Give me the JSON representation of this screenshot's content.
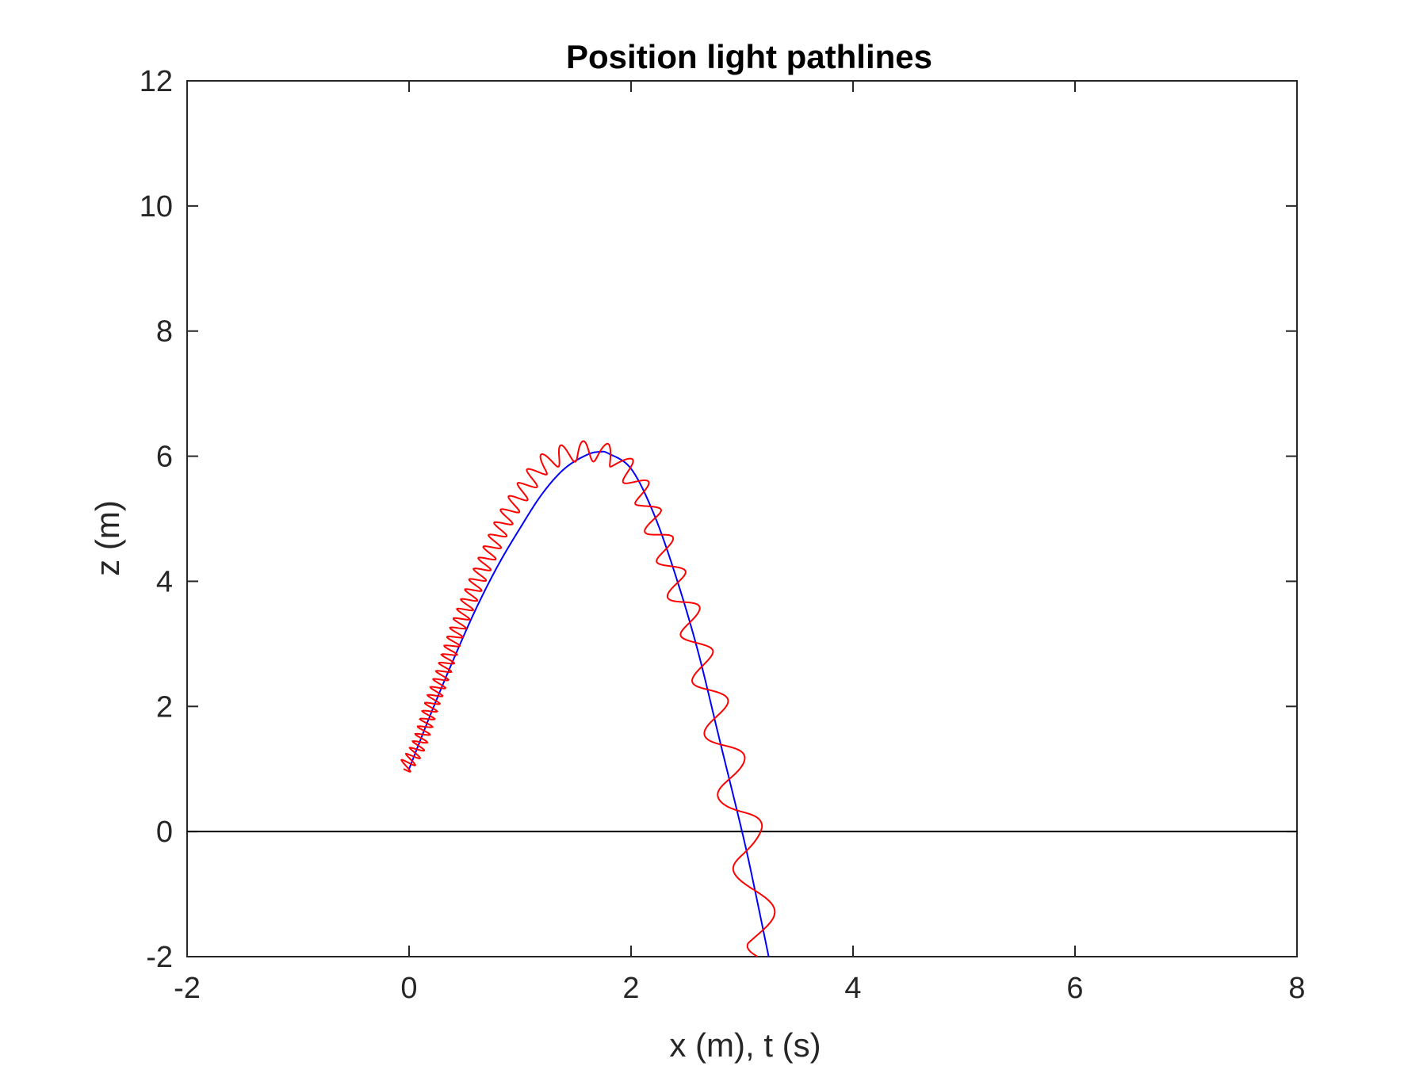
{
  "chart_data": {
    "type": "line",
    "title": "Position light pathlines",
    "xlabel": "x (m), t (s)",
    "ylabel": "z (m)",
    "xlim": [
      -2,
      8
    ],
    "ylim": [
      -2,
      12
    ],
    "x_ticks": [
      -2,
      0,
      2,
      4,
      6,
      8
    ],
    "y_ticks": [
      -2,
      0,
      2,
      4,
      6,
      8,
      10,
      12
    ],
    "grid": false,
    "legend": "none",
    "reference_line": {
      "y": 0,
      "color": "#000000"
    },
    "series": [
      {
        "color": "#0000ff",
        "x": [
          0.0,
          0.2,
          0.4,
          0.6,
          0.8,
          1.0,
          1.2,
          1.4,
          1.6,
          1.72,
          1.8,
          2.0,
          2.2,
          2.4,
          2.6,
          2.8,
          3.0,
          3.1,
          3.24
        ],
        "y": [
          1.0,
          1.9,
          2.75,
          3.55,
          4.25,
          4.85,
          5.4,
          5.8,
          6.02,
          6.07,
          6.04,
          5.8,
          5.1,
          4.1,
          2.9,
          1.45,
          0.0,
          -0.8,
          -2.0
        ]
      },
      {
        "color": "#ff0000",
        "x": [
          -0.05,
          0.08,
          0.2,
          0.32,
          0.45,
          0.6,
          0.75,
          0.9,
          1.05,
          1.2,
          1.35,
          1.5,
          1.62,
          1.75,
          1.88,
          2.0,
          2.12,
          2.2,
          2.32,
          2.42,
          2.54,
          2.62,
          2.72,
          2.8,
          2.9,
          2.95,
          3.02,
          3.08,
          3.1,
          3.12,
          3.14
        ],
        "y": [
          1.0,
          1.35,
          2.0,
          2.6,
          3.3,
          3.95,
          4.55,
          5.1,
          5.5,
          5.85,
          6.0,
          6.07,
          6.08,
          6.05,
          5.95,
          5.7,
          5.35,
          4.95,
          4.45,
          3.9,
          3.35,
          2.8,
          2.2,
          1.6,
          1.0,
          0.45,
          0.05,
          -0.35,
          -0.9,
          -1.5,
          -2.0
        ],
        "oscillation": "rapid small-amplitude ripple around the blue path, decreasing in frequency and increasing in amplitude along the descent"
      }
    ]
  }
}
